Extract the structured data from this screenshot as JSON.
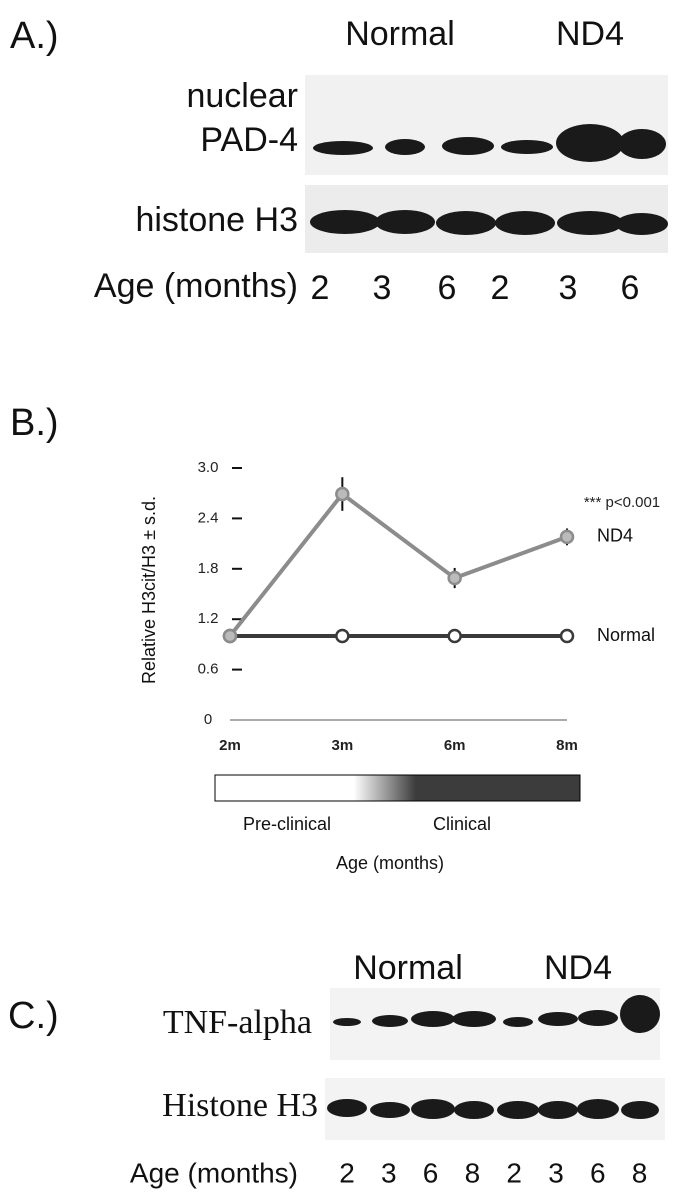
{
  "panel_a": {
    "label": "A.)",
    "groups": [
      "Normal",
      "ND4"
    ],
    "row1_label": [
      "nuclear",
      "PAD-4"
    ],
    "row2_label": "histone H3",
    "age_label": "Age (months)",
    "lanes": [
      "2",
      "3",
      "6",
      "2",
      "3",
      "6"
    ]
  },
  "panel_b": {
    "label": "B.)",
    "stage_labels": [
      "Pre-clinical",
      "Clinical"
    ]
  },
  "chart_data": {
    "type": "line",
    "y_label": "Relative H3cit/H3 ± s.d.",
    "x_label": "Age (months)",
    "annotation": "*** p<0.001",
    "categories": [
      "2m",
      "3m",
      "6m",
      "8m"
    ],
    "series": [
      {
        "name": "ND4",
        "color": "#8c8c8c",
        "values": [
          1.0,
          2.69,
          1.69,
          2.18
        ],
        "errors": [
          0,
          0.2,
          0.12,
          0.1
        ]
      },
      {
        "name": "Normal",
        "color": "#3a3a3a",
        "values": [
          1.0,
          1.0,
          1.0,
          1.0
        ]
      }
    ],
    "ylim": [
      0,
      3.0
    ],
    "yticks": [
      0,
      0.6,
      1.2,
      1.8,
      2.4,
      {
        "value": 3.0,
        "label": "3.0"
      }
    ]
  },
  "panel_c": {
    "label": "C.)",
    "groups": [
      "Normal",
      "ND4"
    ],
    "row1_label": "TNF-alpha",
    "row2_label": "Histone H3",
    "age_label": "Age (months)",
    "lanes": [
      "2",
      "3",
      "6",
      "8",
      "2",
      "3",
      "6",
      "8"
    ]
  }
}
